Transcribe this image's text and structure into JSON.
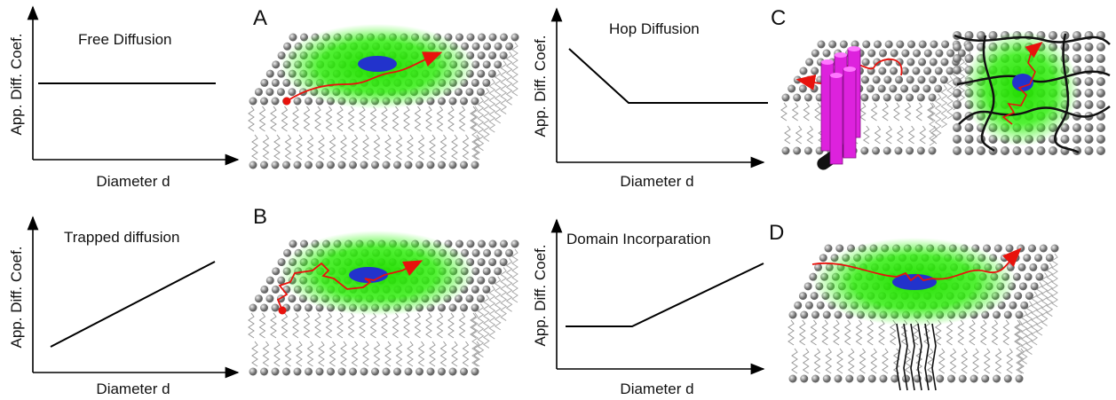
{
  "panels": [
    {
      "letter": "A",
      "title": "Free Diffusion",
      "y_label": "App. Diff. Coef.",
      "x_label": "Diameter d"
    },
    {
      "letter": "C",
      "title": "Hop Diffusion",
      "y_label": "App. Diff. Coef.",
      "x_label": "Diameter d"
    },
    {
      "letter": "B",
      "title": "Trapped diffusion",
      "y_label": "App. Diff. Coef.",
      "x_label": "Diameter d"
    },
    {
      "letter": "D",
      "title": "Domain Incorparation",
      "y_label": "App. Diff. Coef.",
      "x_label": "Diameter d"
    }
  ]
}
